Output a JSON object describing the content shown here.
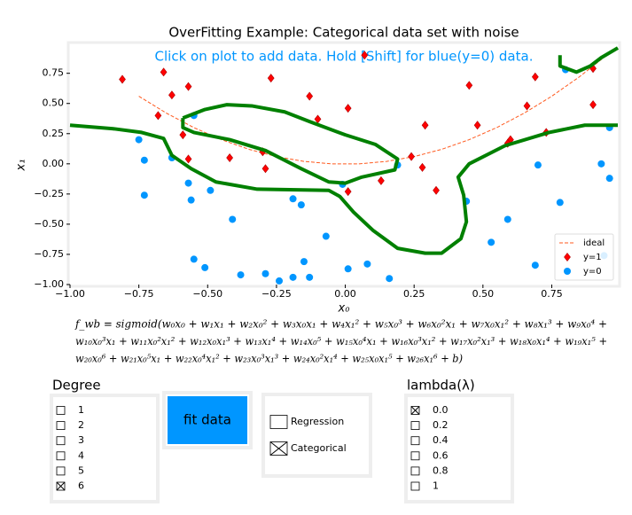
{
  "chart_data": {
    "type": "scatter",
    "title": "OverFitting Example: Categorical data set with noise",
    "annotation": "Click on plot to add data. Hold [Shift] for blue(y=0) data.",
    "xlabel": "x₀",
    "ylabel": "x₁",
    "xlim": [
      -1,
      0.99
    ],
    "ylim": [
      -1,
      0.99
    ],
    "xticks": [
      {
        "value": -1,
        "label": "−1.00"
      },
      {
        "value": -0.75,
        "label": "−0.75"
      },
      {
        "value": -0.5,
        "label": "−0.50"
      },
      {
        "value": -0.25,
        "label": "−0.25"
      },
      {
        "value": 0,
        "label": "0.00"
      },
      {
        "value": 0.25,
        "label": "0.25"
      },
      {
        "value": 0.5,
        "label": "0.50"
      },
      {
        "value": 0.75,
        "label": "0.75"
      }
    ],
    "yticks": [
      {
        "value": -1,
        "label": "−1.00"
      },
      {
        "value": -0.75,
        "label": "−0.75"
      },
      {
        "value": -0.5,
        "label": "−0.50"
      },
      {
        "value": -0.25,
        "label": "−0.25"
      },
      {
        "value": 0,
        "label": "0.00"
      },
      {
        "value": 0.25,
        "label": "0.25"
      },
      {
        "value": 0.5,
        "label": "0.50"
      },
      {
        "value": 0.75,
        "label": "0.75"
      }
    ],
    "legend": "lower right",
    "series": [
      {
        "name": "ideal",
        "type": "line",
        "dash": true,
        "color": "#ff5a1f",
        "x": [
          -0.75,
          -0.65,
          -0.55,
          -0.45,
          -0.35,
          -0.25,
          -0.15,
          -0.05,
          0.05,
          0.15,
          0.25,
          0.35,
          0.45,
          0.55,
          0.65,
          0.75,
          0.85,
          0.95
        ],
        "values": [
          0.56,
          0.42,
          0.3,
          0.2,
          0.12,
          0.06,
          0.02,
          0.0,
          0.0,
          0.02,
          0.06,
          0.12,
          0.2,
          0.3,
          0.42,
          0.56,
          0.72,
          0.9
        ]
      },
      {
        "name": "y=1",
        "type": "scatter",
        "marker": "diamond",
        "color": "#ff0000",
        "x": [
          -0.81,
          -0.66,
          -0.68,
          -0.63,
          -0.57,
          -0.59,
          -0.57,
          -0.42,
          -0.27,
          -0.3,
          -0.29,
          -0.13,
          -0.1,
          0.01,
          0.01,
          0.07,
          0.13,
          0.24,
          0.28,
          0.29,
          0.33,
          0.45,
          0.48,
          0.6,
          0.59,
          0.66,
          0.69,
          0.73,
          0.9,
          0.9
        ],
        "values": [
          0.7,
          0.76,
          0.4,
          0.57,
          0.64,
          0.24,
          0.04,
          0.05,
          0.71,
          0.1,
          -0.04,
          0.56,
          0.37,
          0.46,
          -0.23,
          0.9,
          -0.14,
          0.06,
          -0.03,
          0.32,
          -0.22,
          0.65,
          0.32,
          0.2,
          0.17,
          0.48,
          0.72,
          0.26,
          0.79,
          0.49
        ]
      },
      {
        "name": "y=0",
        "type": "scatter",
        "marker": "circle",
        "color": "#0096ff",
        "x": [
          -0.75,
          -0.73,
          -0.73,
          -0.63,
          -0.57,
          -0.56,
          -0.55,
          -0.49,
          -0.55,
          -0.51,
          -0.41,
          -0.38,
          -0.29,
          -0.24,
          -0.19,
          -0.15,
          -0.13,
          -0.19,
          -0.16,
          -0.07,
          -0.01,
          0.01,
          0.08,
          0.16,
          0.19,
          0.44,
          0.53,
          0.59,
          0.69,
          0.7,
          0.78,
          0.8,
          0.93,
          0.96,
          0.96,
          0.94
        ],
        "values": [
          0.2,
          0.03,
          -0.26,
          0.05,
          -0.16,
          -0.3,
          0.4,
          -0.22,
          -0.79,
          -0.86,
          -0.46,
          -0.92,
          -0.91,
          -0.97,
          -0.94,
          -0.81,
          -0.94,
          -0.29,
          -0.34,
          -0.6,
          -0.17,
          -0.87,
          -0.83,
          -0.95,
          -0.01,
          -0.31,
          -0.65,
          -0.46,
          -0.84,
          -0.01,
          -0.32,
          0.78,
          0.0,
          -0.12,
          0.3,
          -0.76
        ]
      },
      {
        "type": "line",
        "color": "#008000",
        "x": [
          -1,
          -0.84,
          -0.74,
          -0.66,
          -0.63,
          -0.56,
          -0.47,
          -0.32,
          -0.06,
          -0.02,
          0.03,
          0.1,
          0.19,
          0.29,
          0.35,
          0.42,
          0.44,
          0.43,
          0.41,
          0.45,
          0.58,
          0.74,
          0.87,
          0.99,
          null,
          -0.59,
          -0.51,
          -0.43,
          -0.34,
          -0.22,
          -0.13,
          0.0,
          0.11,
          0.19,
          0.18,
          0.06,
          0.0,
          -0.06,
          -0.16,
          -0.29,
          -0.42,
          -0.55,
          -0.59,
          -0.59,
          null,
          0.78,
          0.78,
          0.84,
          0.89,
          0.93,
          0.99
        ],
        "values": [
          0.32,
          0.29,
          0.26,
          0.21,
          0.07,
          -0.04,
          -0.15,
          -0.21,
          -0.22,
          -0.27,
          -0.4,
          -0.55,
          -0.7,
          -0.74,
          -0.74,
          -0.62,
          -0.48,
          -0.26,
          -0.11,
          0.0,
          0.15,
          0.26,
          0.32,
          0.32,
          null,
          0.38,
          0.45,
          0.49,
          0.48,
          0.43,
          0.35,
          0.24,
          0.16,
          0.04,
          -0.05,
          -0.11,
          -0.16,
          -0.15,
          -0.04,
          0.11,
          0.2,
          0.26,
          0.3,
          0.38,
          null,
          0.9,
          0.81,
          0.76,
          0.81,
          0.88,
          0.96
        ]
      }
    ]
  },
  "equation": {
    "lines": [
      "f_wb = sigmoid(w₀x₀ + w₁x₁ + w₂x₀² + w₃x₀x₁ + w₄x₁² + w₅x₀³ + w₆x₀²x₁ + w₇x₀x₁² + w₈x₁³ + w₉x₀⁴ +",
      "w₁₀x₀³x₁ + w₁₁x₀²x₁² + w₁₂x₀x₁³ + w₁₃x₁⁴ + w₁₄x₀⁵ + w₁₅x₀⁴x₁ + w₁₆x₀³x₁² + w₁₇x₀²x₁³ + w₁₈x₀x₁⁴ + w₁₉x₁⁵ +",
      "w₂₀x₀⁶ + w₂₁x₀⁵x₁ + w₂₂x₀⁴x₁² + w₂₃x₀³x₁³ + w₂₄x₀²x₁⁴ + w₂₅x₀x₁⁵ + w₂₆x₁⁶ + b)"
    ]
  },
  "degree": {
    "label": "Degree",
    "options": [
      {
        "label": "1",
        "checked": false
      },
      {
        "label": "2",
        "checked": false
      },
      {
        "label": "3",
        "checked": false
      },
      {
        "label": "4",
        "checked": false
      },
      {
        "label": "5",
        "checked": false
      },
      {
        "label": "6",
        "checked": true
      }
    ]
  },
  "button": {
    "label": "fit data"
  },
  "mode": {
    "options": [
      {
        "label": "Regression",
        "checked": false
      },
      {
        "label": "Categorical",
        "checked": true
      }
    ]
  },
  "lambda": {
    "label": "lambda(λ)",
    "options": [
      {
        "label": "0.0",
        "checked": true
      },
      {
        "label": "0.2",
        "checked": false
      },
      {
        "label": "0.4",
        "checked": false
      },
      {
        "label": "0.6",
        "checked": false
      },
      {
        "label": "0.8",
        "checked": false
      },
      {
        "label": "1",
        "checked": false
      }
    ]
  }
}
